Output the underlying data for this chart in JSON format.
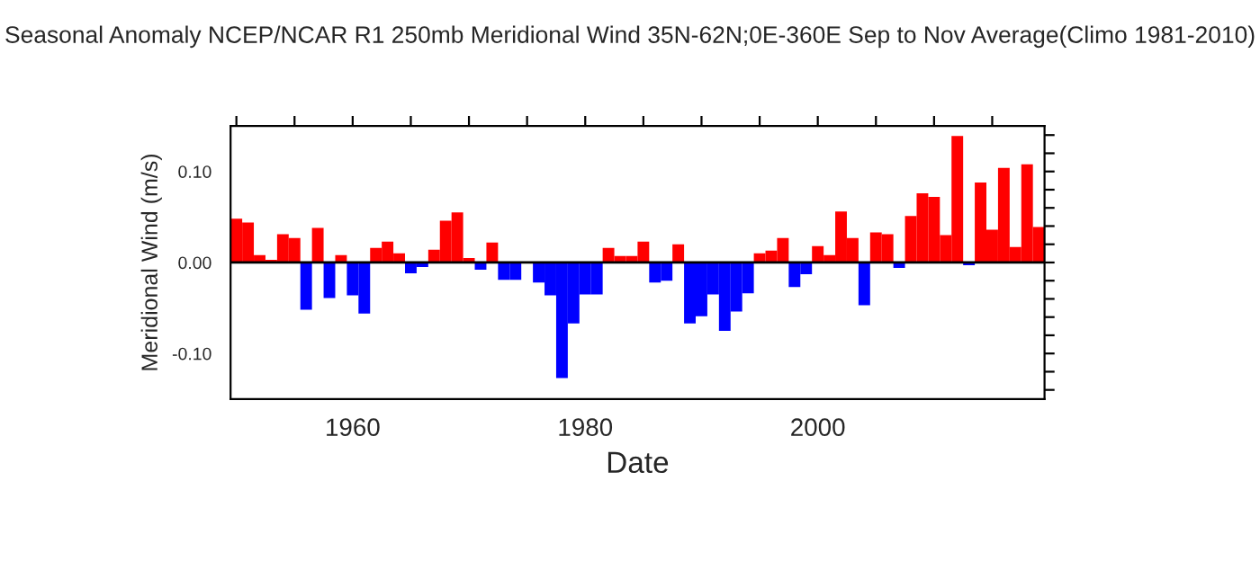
{
  "chart_data": {
    "type": "bar",
    "title": "Seasonal Anomaly NCEP/NCAR R1 250mb Meridional Wind 35N-62N;0E-360E Sep to Nov Average(Climo 1981-2010)",
    "xlabel": "Date",
    "ylabel": "Meridional Wind (m/s)",
    "x": [
      1950,
      1951,
      1952,
      1953,
      1954,
      1955,
      1956,
      1957,
      1958,
      1959,
      1960,
      1961,
      1962,
      1963,
      1964,
      1965,
      1966,
      1967,
      1968,
      1969,
      1970,
      1971,
      1972,
      1973,
      1974,
      1975,
      1976,
      1977,
      1978,
      1979,
      1980,
      1981,
      1982,
      1983,
      1984,
      1985,
      1986,
      1987,
      1988,
      1989,
      1990,
      1991,
      1992,
      1993,
      1994,
      1995,
      1996,
      1997,
      1998,
      1999,
      2000,
      2001,
      2002,
      2003,
      2004,
      2005,
      2006,
      2007,
      2008,
      2009,
      2010,
      2011,
      2012,
      2013,
      2014,
      2015,
      2016,
      2017,
      2018,
      2019
    ],
    "values": [
      0.048,
      0.044,
      0.008,
      0.003,
      0.031,
      0.027,
      -0.052,
      0.038,
      -0.039,
      0.008,
      -0.036,
      -0.056,
      0.016,
      0.023,
      0.01,
      -0.012,
      -0.005,
      0.014,
      0.046,
      0.055,
      0.005,
      -0.008,
      0.022,
      -0.019,
      -0.019,
      0.0,
      -0.022,
      -0.036,
      -0.127,
      -0.067,
      -0.035,
      -0.035,
      0.016,
      0.007,
      0.007,
      0.023,
      -0.022,
      -0.02,
      0.02,
      -0.067,
      -0.059,
      -0.035,
      -0.075,
      -0.054,
      -0.034,
      0.01,
      0.013,
      0.027,
      -0.027,
      -0.013,
      0.018,
      0.008,
      0.056,
      0.027,
      -0.047,
      0.033,
      0.031,
      -0.006,
      0.051,
      0.076,
      0.072,
      0.03,
      0.139,
      -0.003,
      0.088,
      0.036,
      0.104,
      0.017,
      0.108,
      0.039
    ],
    "colors": [
      "#ff0000",
      "#ff0000",
      "#ff0000",
      "#ff0000",
      "#ff0000",
      "#ff0000",
      "#0000ff",
      "#ff0000",
      "#0000ff",
      "#ff0000",
      "#0000ff",
      "#0000ff",
      "#ff0000",
      "#ff0000",
      "#ff0000",
      "#0000ff",
      "#0000ff",
      "#ff0000",
      "#ff0000",
      "#ff0000",
      "#ff0000",
      "#0000ff",
      "#ff0000",
      "#0000ff",
      "#0000ff",
      "#ff0000",
      "#0000ff",
      "#0000ff",
      "#0000ff",
      "#0000ff",
      "#0000ff",
      "#0000ff",
      "#ff0000",
      "#ff0000",
      "#ff0000",
      "#ff0000",
      "#0000ff",
      "#0000ff",
      "#ff0000",
      "#0000ff",
      "#0000ff",
      "#0000ff",
      "#0000ff",
      "#0000ff",
      "#0000ff",
      "#ff0000",
      "#ff0000",
      "#ff0000",
      "#0000ff",
      "#0000ff",
      "#ff0000",
      "#ff0000",
      "#ff0000",
      "#ff0000",
      "#0000ff",
      "#ff0000",
      "#ff0000",
      "#0000ff",
      "#ff0000",
      "#ff0000",
      "#ff0000",
      "#ff0000",
      "#ff0000",
      "#0000ff",
      "#ff0000",
      "#ff0000",
      "#ff0000",
      "#ff0000",
      "#ff0000",
      "#ff0000"
    ],
    "xlim": [
      1949.5,
      2019.5
    ],
    "xticks": [
      {
        "value": 1950,
        "label": null
      },
      {
        "value": 1955,
        "label": null
      },
      1960,
      {
        "value": 1965,
        "label": null
      },
      {
        "value": 1970,
        "label": null
      },
      {
        "value": 1975,
        "label": null
      },
      1980,
      {
        "value": 1985,
        "label": null
      },
      {
        "value": 1990,
        "label": null
      },
      {
        "value": 1995,
        "label": null
      },
      2000,
      {
        "value": 2005,
        "label": null
      },
      {
        "value": 2010,
        "label": null
      },
      {
        "value": 2015,
        "label": null
      }
    ],
    "ylim": [
      -0.15,
      0.15
    ],
    "yticks": [
      {
        "value": -0.14,
        "label": null
      },
      {
        "value": -0.12,
        "label": null
      },
      {
        "value": -0.1,
        "label": "-0.10"
      },
      {
        "value": -0.08,
        "label": null
      },
      {
        "value": -0.06,
        "label": null
      },
      {
        "value": -0.04,
        "label": null
      },
      {
        "value": -0.02,
        "label": null
      },
      {
        "value": 0,
        "label": "0.00"
      },
      {
        "value": 0.02,
        "label": null
      },
      {
        "value": 0.04,
        "label": null
      },
      {
        "value": 0.06,
        "label": null
      },
      {
        "value": 0.08,
        "label": null
      },
      {
        "value": 0.1,
        "label": "0.10"
      },
      {
        "value": 0.12,
        "label": null
      },
      {
        "value": 0.14,
        "label": null
      }
    ],
    "ref_lines": [
      {
        "axis": "y",
        "value": 0,
        "color": "#000000"
      }
    ]
  }
}
